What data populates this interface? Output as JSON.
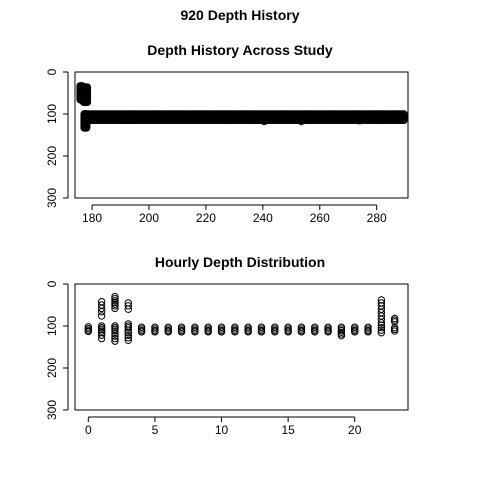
{
  "figure": {
    "title": "920 Depth History"
  },
  "chart_data": [
    {
      "type": "scatter",
      "title": "Depth History Across Study",
      "xlabel": "",
      "ylabel": "",
      "xlim": [
        174,
        291
      ],
      "ylim": [
        300,
        0
      ],
      "x_ticks": [
        180,
        200,
        220,
        240,
        260,
        280
      ],
      "y_ticks": [
        0,
        100,
        200,
        300
      ],
      "grid": false,
      "segments": [
        {
          "x_start": 175.8,
          "x_end": 176.6,
          "depth_min": 33,
          "depth_max": 68
        },
        {
          "x_start": 177.0,
          "x_end": 178.4,
          "depth_min": 36,
          "depth_max": 72
        },
        {
          "x_start": 177.2,
          "x_end": 178.2,
          "depth_min": 100,
          "depth_max": 135
        },
        {
          "x_start": 178.0,
          "x_end": 290.0,
          "depth_min": 100,
          "depth_max": 115
        }
      ],
      "outliers": [
        {
          "x": 240.5,
          "y": 118
        },
        {
          "x": 253.5,
          "y": 118
        },
        {
          "x": 274.0,
          "y": 116
        }
      ]
    },
    {
      "type": "scatter",
      "title": "Hourly Depth Distribution",
      "xlabel": "",
      "ylabel": "",
      "xlim": [
        -1,
        24
      ],
      "ylim": [
        300,
        0
      ],
      "x_ticks": [
        0,
        5,
        10,
        15,
        20
      ],
      "y_ticks": [
        0,
        100,
        200,
        300
      ],
      "grid": false,
      "hourly": [
        {
          "hour": 0,
          "depths": [
            102,
            106,
            110,
            113
          ]
        },
        {
          "hour": 1,
          "depths": [
            42,
            50,
            58,
            66,
            76,
            100,
            104,
            108,
            112,
            116,
            122,
            130
          ]
        },
        {
          "hour": 2,
          "depths": [
            30,
            35,
            40,
            44,
            48,
            52,
            58,
            100,
            104,
            108,
            112,
            118,
            124,
            130,
            136
          ]
        },
        {
          "hour": 3,
          "depths": [
            45,
            52,
            60,
            95,
            100,
            104,
            110,
            116,
            122,
            128,
            134
          ]
        },
        {
          "hour": 4,
          "depths": [
            103,
            107,
            111,
            114
          ]
        },
        {
          "hour": 5,
          "depths": [
            103,
            107,
            111,
            114
          ]
        },
        {
          "hour": 6,
          "depths": [
            103,
            107,
            111,
            114
          ]
        },
        {
          "hour": 7,
          "depths": [
            103,
            107,
            111,
            114
          ]
        },
        {
          "hour": 8,
          "depths": [
            103,
            107,
            111,
            114
          ]
        },
        {
          "hour": 9,
          "depths": [
            103,
            107,
            111,
            114
          ]
        },
        {
          "hour": 10,
          "depths": [
            103,
            107,
            111,
            114
          ]
        },
        {
          "hour": 11,
          "depths": [
            103,
            107,
            111,
            114
          ]
        },
        {
          "hour": 12,
          "depths": [
            103,
            107,
            111,
            114
          ]
        },
        {
          "hour": 13,
          "depths": [
            103,
            107,
            111,
            114
          ]
        },
        {
          "hour": 14,
          "depths": [
            103,
            107,
            111,
            114
          ]
        },
        {
          "hour": 15,
          "depths": [
            103,
            107,
            111,
            114
          ]
        },
        {
          "hour": 16,
          "depths": [
            103,
            107,
            111,
            114
          ]
        },
        {
          "hour": 17,
          "depths": [
            103,
            107,
            111,
            114
          ]
        },
        {
          "hour": 18,
          "depths": [
            103,
            107,
            111,
            114
          ]
        },
        {
          "hour": 19,
          "depths": [
            103,
            107,
            111,
            115,
            119,
            123
          ]
        },
        {
          "hour": 20,
          "depths": [
            103,
            107,
            111,
            114
          ]
        },
        {
          "hour": 21,
          "depths": [
            103,
            107,
            111,
            114
          ]
        },
        {
          "hour": 22,
          "depths": [
            38,
            45,
            52,
            60,
            68,
            76,
            84,
            92,
            98,
            104,
            110,
            116
          ]
        },
        {
          "hour": 23,
          "depths": [
            82,
            86,
            90,
            104,
            108,
            112
          ]
        }
      ]
    }
  ]
}
